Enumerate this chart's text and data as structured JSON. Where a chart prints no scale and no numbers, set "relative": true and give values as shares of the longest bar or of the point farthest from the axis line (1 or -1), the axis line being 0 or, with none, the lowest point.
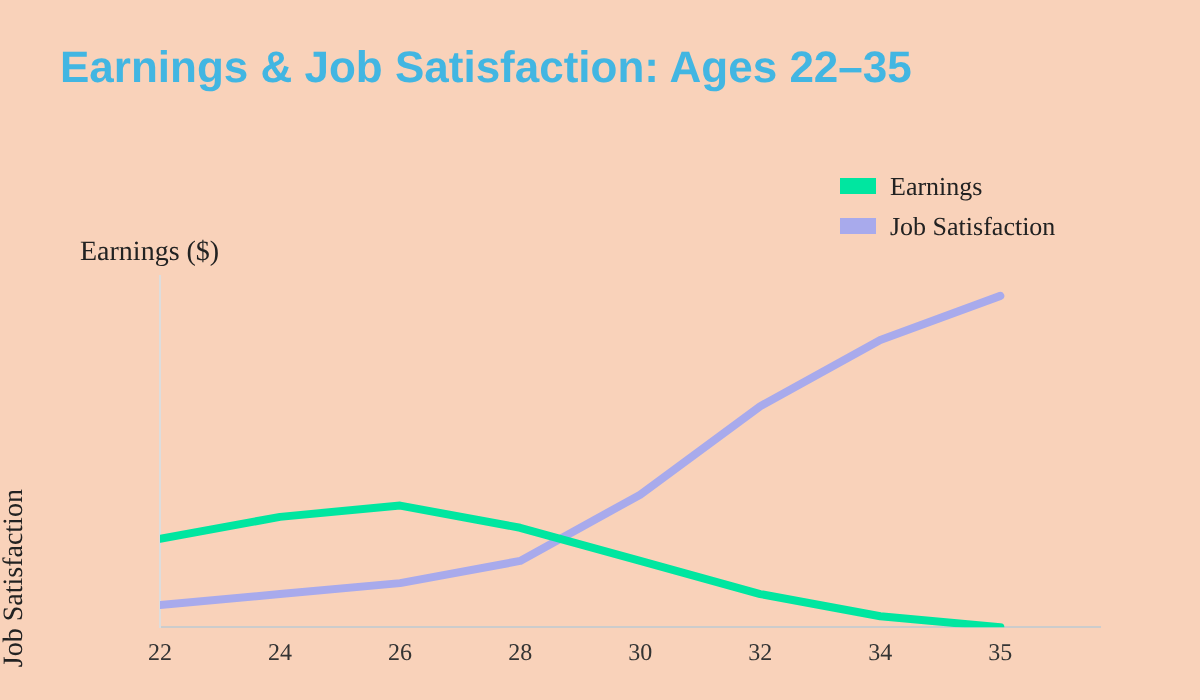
{
  "chart_data": {
    "type": "line",
    "title": "Earnings & Job Satisfaction: Ages 22–35",
    "ylabel": "Earnings ($)",
    "y2label": "Job Satisfaction",
    "relative": true,
    "categories": [
      "22",
      "24",
      "26",
      "28",
      "30",
      "32",
      "34",
      "35"
    ],
    "series": [
      {
        "name": "Earnings",
        "color": "#00e6a0",
        "values": [
          0.267,
          0.333,
          0.367,
          0.3,
          0.2,
          0.1,
          0.033,
          0
        ]
      },
      {
        "name": "Job Satisfaction",
        "color": "#a8aaec",
        "values": [
          0.067,
          0.1,
          0.133,
          0.2,
          0.4,
          0.667,
          0.867,
          1
        ]
      }
    ],
    "legend": "top right",
    "grid": false,
    "marker": "none",
    "line_style": "solid"
  }
}
